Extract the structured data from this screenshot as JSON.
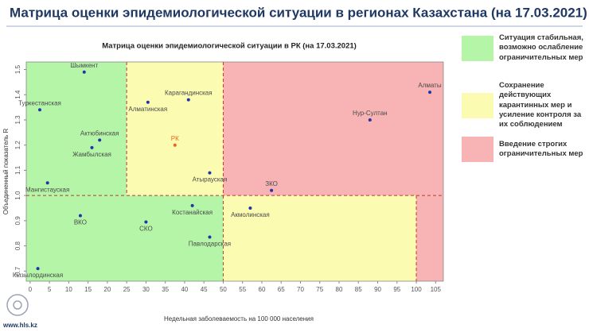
{
  "header": {
    "title": "Матрица оценки эпидемиологической ситуации в регионах Казахстана (на 17.03.2021)",
    "site": "www.hls.kz"
  },
  "chart_data": {
    "type": "scatter",
    "title": "Матрица оценки эпидемиологической ситуации в РК (на 17.03.2021)",
    "x_label": "Недельная заболеваемость на 100 000 населения",
    "y_label": "Объединенный показатель R",
    "xlim": [
      -1,
      107
    ],
    "ylim": [
      0.66,
      1.53
    ],
    "xticks": [
      0,
      5,
      10,
      15,
      20,
      25,
      30,
      35,
      40,
      45,
      50,
      55,
      60,
      65,
      70,
      75,
      80,
      85,
      90,
      95,
      100,
      105
    ],
    "yticks": [
      0.7,
      0.8,
      0.9,
      {
        "value": 1.0,
        "label": "1.0"
      },
      1.1,
      1.2,
      1.3,
      1.4,
      1.5
    ],
    "thresholds": {
      "x": [
        25,
        50,
        100
      ],
      "y": 1.0
    },
    "zones": [
      {
        "label": "Ситуация стабильная, возможно ослабление ограничительных мер",
        "color": "#b4f5a8"
      },
      {
        "label": "Сохранение действующих карантинных мер и усиление контроля за их соблюдением",
        "color": "#fbfbb2"
      },
      {
        "label": "Введение строгих ограничительных мер",
        "color": "#f8b4b4"
      }
    ],
    "points": {
      "names": [
        "Шымкент",
        "Туркестанская",
        "Актюбинская",
        "Жамбылская",
        "Мангистауская",
        "Карагандинская",
        "Алматинская",
        "РК",
        "Атырауская",
        "Алматы",
        "Нур-Султан",
        "ЗКО",
        "Акмолинская",
        "Костанайская",
        "ВКО",
        "СКО",
        "Павлодарская",
        "Кызылординская"
      ],
      "x": [
        14,
        2.5,
        18,
        16,
        4.5,
        41,
        30.5,
        37.5,
        46.5,
        103.5,
        88,
        62.5,
        57,
        42,
        13,
        30,
        46.5,
        2
      ],
      "y": [
        1.49,
        1.34,
        1.22,
        1.19,
        1.05,
        1.38,
        1.37,
        1.2,
        1.09,
        1.41,
        1.3,
        1.02,
        0.95,
        0.96,
        0.92,
        0.895,
        0.835,
        0.71
      ],
      "colors": [
        "#2233aa",
        "#2233aa",
        "#2233aa",
        "#2233aa",
        "#2233aa",
        "#2233aa",
        "#2233aa",
        "#e8661c",
        "#2233aa",
        "#2233aa",
        "#2233aa",
        "#2233aa",
        "#2233aa",
        "#2233aa",
        "#2233aa",
        "#2233aa",
        "#2233aa",
        "#2233aa"
      ]
    }
  }
}
